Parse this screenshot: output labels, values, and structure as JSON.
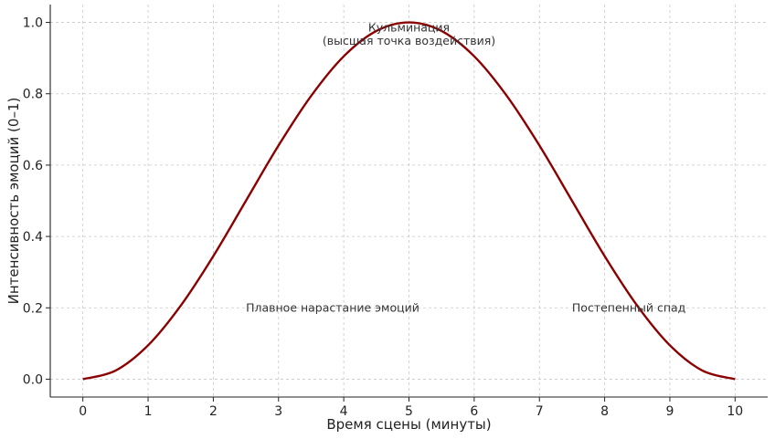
{
  "chart_data": {
    "type": "line",
    "title": "",
    "xlabel": "Время сцены (минуты)",
    "ylabel": "Интенсивность эмоций (0–1)",
    "xlim": [
      -0.5,
      10.5
    ],
    "ylim": [
      -0.05,
      1.05
    ],
    "xticks": [
      0,
      1,
      2,
      3,
      4,
      5,
      6,
      7,
      8,
      9,
      10
    ],
    "xtick_labels": [
      "0",
      "1",
      "2",
      "3",
      "4",
      "5",
      "6",
      "7",
      "8",
      "9",
      "10"
    ],
    "yticks": [
      0.0,
      0.2,
      0.4,
      0.6,
      0.8,
      1.0
    ],
    "ytick_labels": [
      "0.0",
      "0.2",
      "0.4",
      "0.6",
      "0.8",
      "1.0"
    ],
    "grid": true,
    "series": [
      {
        "color": "#8b0000",
        "x": [
          0,
          0.5,
          1,
          1.5,
          2,
          2.5,
          3,
          3.5,
          4,
          4.5,
          5,
          5.5,
          6,
          6.5,
          7,
          7.5,
          8,
          8.5,
          9,
          9.5,
          10
        ],
        "y": [
          0.0,
          0.024,
          0.095,
          0.206,
          0.345,
          0.5,
          0.655,
          0.794,
          0.905,
          0.976,
          1.0,
          0.976,
          0.905,
          0.794,
          0.655,
          0.5,
          0.345,
          0.206,
          0.095,
          0.024,
          0.0
        ]
      }
    ],
    "annotations": [
      {
        "lines": [
          "Кульминация",
          "(высшая точка воздействия)"
        ],
        "x": 5,
        "y": 0.985,
        "align": "center"
      },
      {
        "lines": [
          "Плавное нарастание эмоций"
        ],
        "x": 2.5,
        "y": 0.2,
        "align": "left"
      },
      {
        "lines": [
          "Постепенный спад"
        ],
        "x": 7.5,
        "y": 0.2,
        "align": "left"
      }
    ]
  }
}
